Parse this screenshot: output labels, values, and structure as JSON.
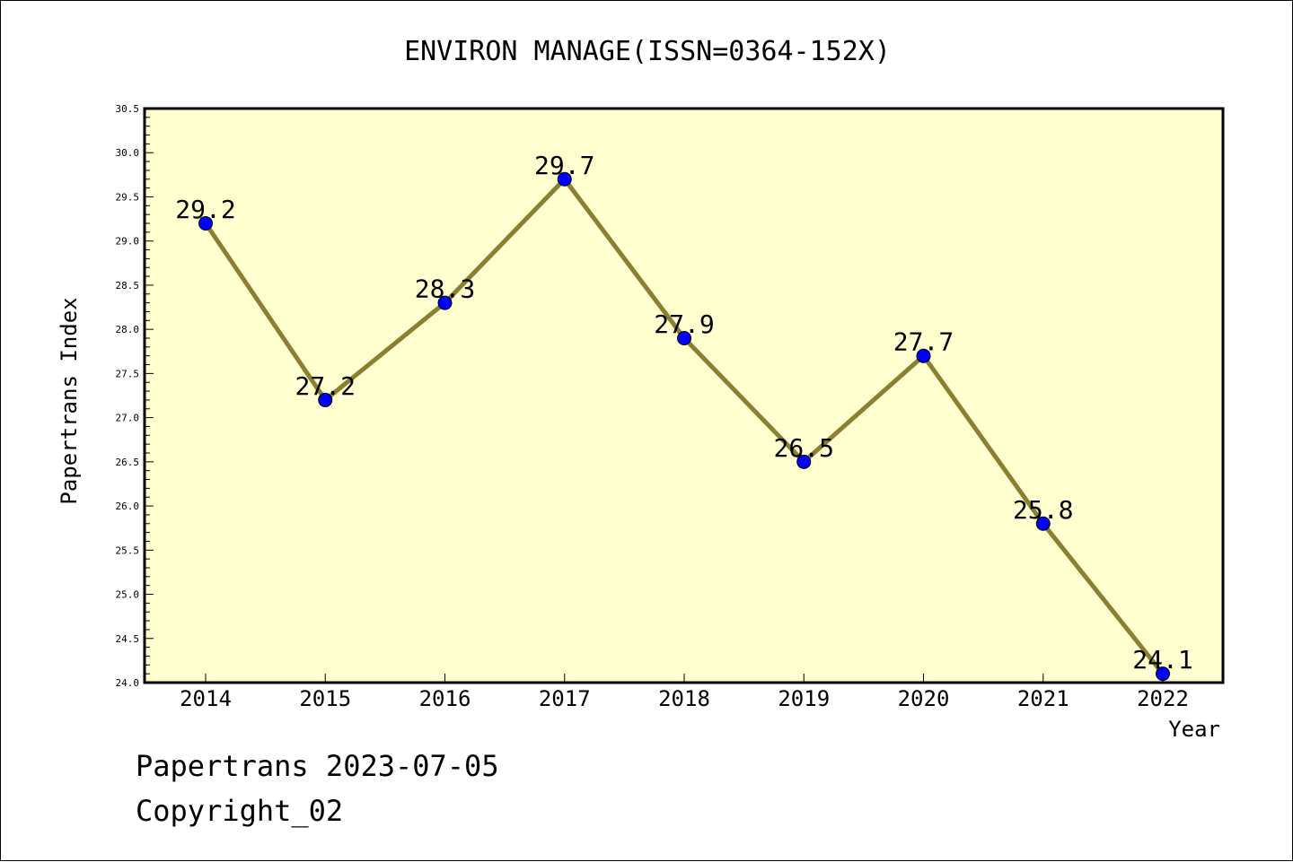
{
  "chart_data": {
    "type": "line",
    "title": "ENVIRON MANAGE(ISSN=0364-152X)",
    "xlabel": "Year",
    "ylabel": "Papertrans Index",
    "categories": [
      "2014",
      "2015",
      "2016",
      "2017",
      "2018",
      "2019",
      "2020",
      "2021",
      "2022"
    ],
    "series": [
      {
        "values": [
          29.2,
          27.2,
          28.3,
          29.7,
          27.9,
          26.5,
          27.7,
          25.8,
          24.1
        ]
      }
    ],
    "data_labels": [
      "29.2",
      "27.2",
      "28.3",
      "29.7",
      "27.9",
      "26.5",
      "27.7",
      "25.8",
      "24.1"
    ],
    "y_tick_labels": [
      "24.0",
      "24.5",
      "25.0",
      "25.5",
      "26.0",
      "26.5",
      "27.0",
      "27.5",
      "28.0",
      "28.5",
      "29.0",
      "29.5",
      "30.0",
      "30.5"
    ],
    "ylim": [
      24.0,
      30.5
    ],
    "grid": false,
    "colors": {
      "plot_background": "#ffffd0",
      "line": "#8b7f32",
      "marker": "#0000ff"
    }
  },
  "footer": {
    "line1": "Papertrans 2023-07-05",
    "line2": "Copyright_02"
  }
}
